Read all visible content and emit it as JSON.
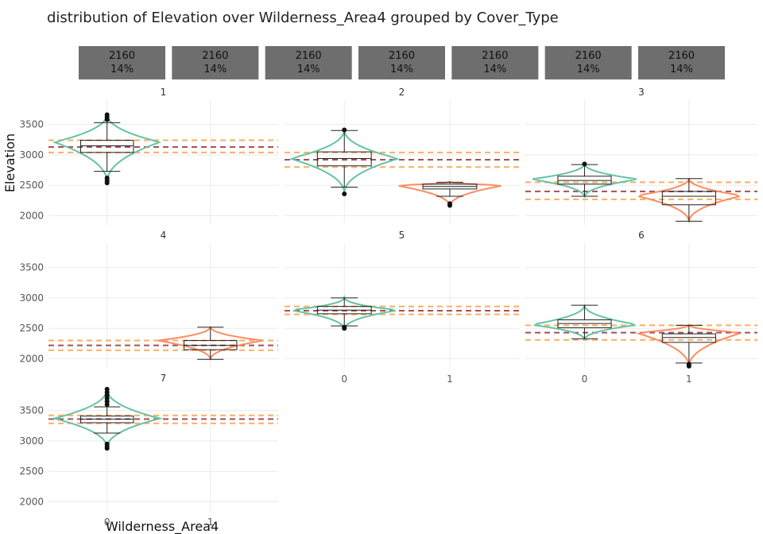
{
  "title": "distribution of Elevation over Wilderness_Area4 grouped by Cover_Type",
  "xlabel": "Wilderness_Area4",
  "ylabel": "Elevation",
  "colors": {
    "group0": "#66c2a5",
    "group1": "#fc8d62",
    "mean_line": "#a0525a",
    "quartile_line": "#fdae61",
    "count_box": "#6e6e6e",
    "grid": "#ebebeb"
  },
  "count_boxes": [
    {
      "count": "2160",
      "pct": "14%"
    },
    {
      "count": "2160",
      "pct": "14%"
    },
    {
      "count": "2160",
      "pct": "14%"
    },
    {
      "count": "2160",
      "pct": "14%"
    },
    {
      "count": "2160",
      "pct": "14%"
    },
    {
      "count": "2160",
      "pct": "14%"
    },
    {
      "count": "2160",
      "pct": "14%"
    }
  ],
  "chart_data": {
    "type": "violin+box",
    "x_categories": [
      "0",
      "1"
    ],
    "y_ticks": [
      2000,
      2500,
      3000,
      3500
    ],
    "ylim": [
      1850,
      3900
    ],
    "grid": true,
    "panels": [
      {
        "label": "1",
        "ref_lines": {
          "q1": 3040,
          "mean": 3130,
          "q3": 3240
        },
        "groups": [
          {
            "x": "0",
            "min": 2730,
            "q1": 3040,
            "median": 3150,
            "q3": 3240,
            "max": 3530,
            "outliers": [
              2540,
              2580,
              2620,
              3580,
              3620,
              3660
            ],
            "violin_low": 2540,
            "violin_high": 3680,
            "violin_peak": 3210
          }
        ]
      },
      {
        "label": "2",
        "ref_lines": {
          "q1": 2800,
          "mean": 2920,
          "q3": 3040
        },
        "groups": [
          {
            "x": "0",
            "min": 2470,
            "q1": 2820,
            "median": 2940,
            "q3": 3050,
            "max": 3400,
            "outliers": [
              2360,
              3410
            ],
            "violin_low": 2360,
            "violin_high": 3420,
            "violin_peak": 2940
          },
          {
            "x": "1",
            "min": 2320,
            "q1": 2440,
            "median": 2480,
            "q3": 2520,
            "max": 2550,
            "outliers": [
              2170,
              2200
            ],
            "violin_low": 2150,
            "violin_high": 2560,
            "violin_peak": 2500
          }
        ]
      },
      {
        "label": "3",
        "ref_lines": {
          "q1": 2270,
          "mean": 2400,
          "q3": 2550
        },
        "groups": [
          {
            "x": "0",
            "min": 2320,
            "q1": 2520,
            "median": 2580,
            "q3": 2650,
            "max": 2840,
            "outliers": [
              2850
            ],
            "violin_low": 2300,
            "violin_high": 2860,
            "violin_peak": 2600
          },
          {
            "x": "1",
            "min": 1910,
            "q1": 2180,
            "median": 2320,
            "q3": 2400,
            "max": 2610,
            "outliers": [],
            "violin_low": 1890,
            "violin_high": 2620,
            "violin_peak": 2330
          }
        ]
      },
      {
        "label": "4",
        "ref_lines": {
          "q1": 2140,
          "mean": 2220,
          "q3": 2300
        },
        "groups": [
          {
            "x": "1",
            "min": 1990,
            "q1": 2150,
            "median": 2220,
            "q3": 2300,
            "max": 2520,
            "outliers": [],
            "violin_low": 1980,
            "violin_high": 2530,
            "violin_peak": 2300
          }
        ]
      },
      {
        "label": "5",
        "ref_lines": {
          "q1": 2730,
          "mean": 2790,
          "q3": 2860
        },
        "groups": [
          {
            "x": "0",
            "min": 2540,
            "q1": 2740,
            "median": 2800,
            "q3": 2860,
            "max": 3000,
            "outliers": [
              2500,
              2520
            ],
            "violin_low": 2480,
            "violin_high": 3010,
            "violin_peak": 2800
          }
        ]
      },
      {
        "label": "6",
        "ref_lines": {
          "q1": 2310,
          "mean": 2430,
          "q3": 2550
        },
        "groups": [
          {
            "x": "0",
            "min": 2330,
            "q1": 2510,
            "median": 2580,
            "q3": 2640,
            "max": 2880,
            "outliers": [],
            "violin_low": 2310,
            "violin_high": 2890,
            "violin_peak": 2560
          },
          {
            "x": "1",
            "min": 1930,
            "q1": 2270,
            "median": 2350,
            "q3": 2410,
            "max": 2550,
            "outliers": [
              1880,
              1910
            ],
            "violin_low": 1860,
            "violin_high": 2560,
            "violin_peak": 2430
          }
        ]
      },
      {
        "label": "7",
        "ref_lines": {
          "q1": 3290,
          "mean": 3360,
          "q3": 3420
        },
        "groups": [
          {
            "x": "0",
            "min": 3130,
            "q1": 3300,
            "median": 3360,
            "q3": 3410,
            "max": 3560,
            "outliers": [
              2880,
              2910,
              2950,
              3600,
              3650,
              3700,
              3750,
              3800,
              3850
            ],
            "violin_low": 2880,
            "violin_high": 3860,
            "violin_peak": 3370
          }
        ]
      }
    ]
  }
}
